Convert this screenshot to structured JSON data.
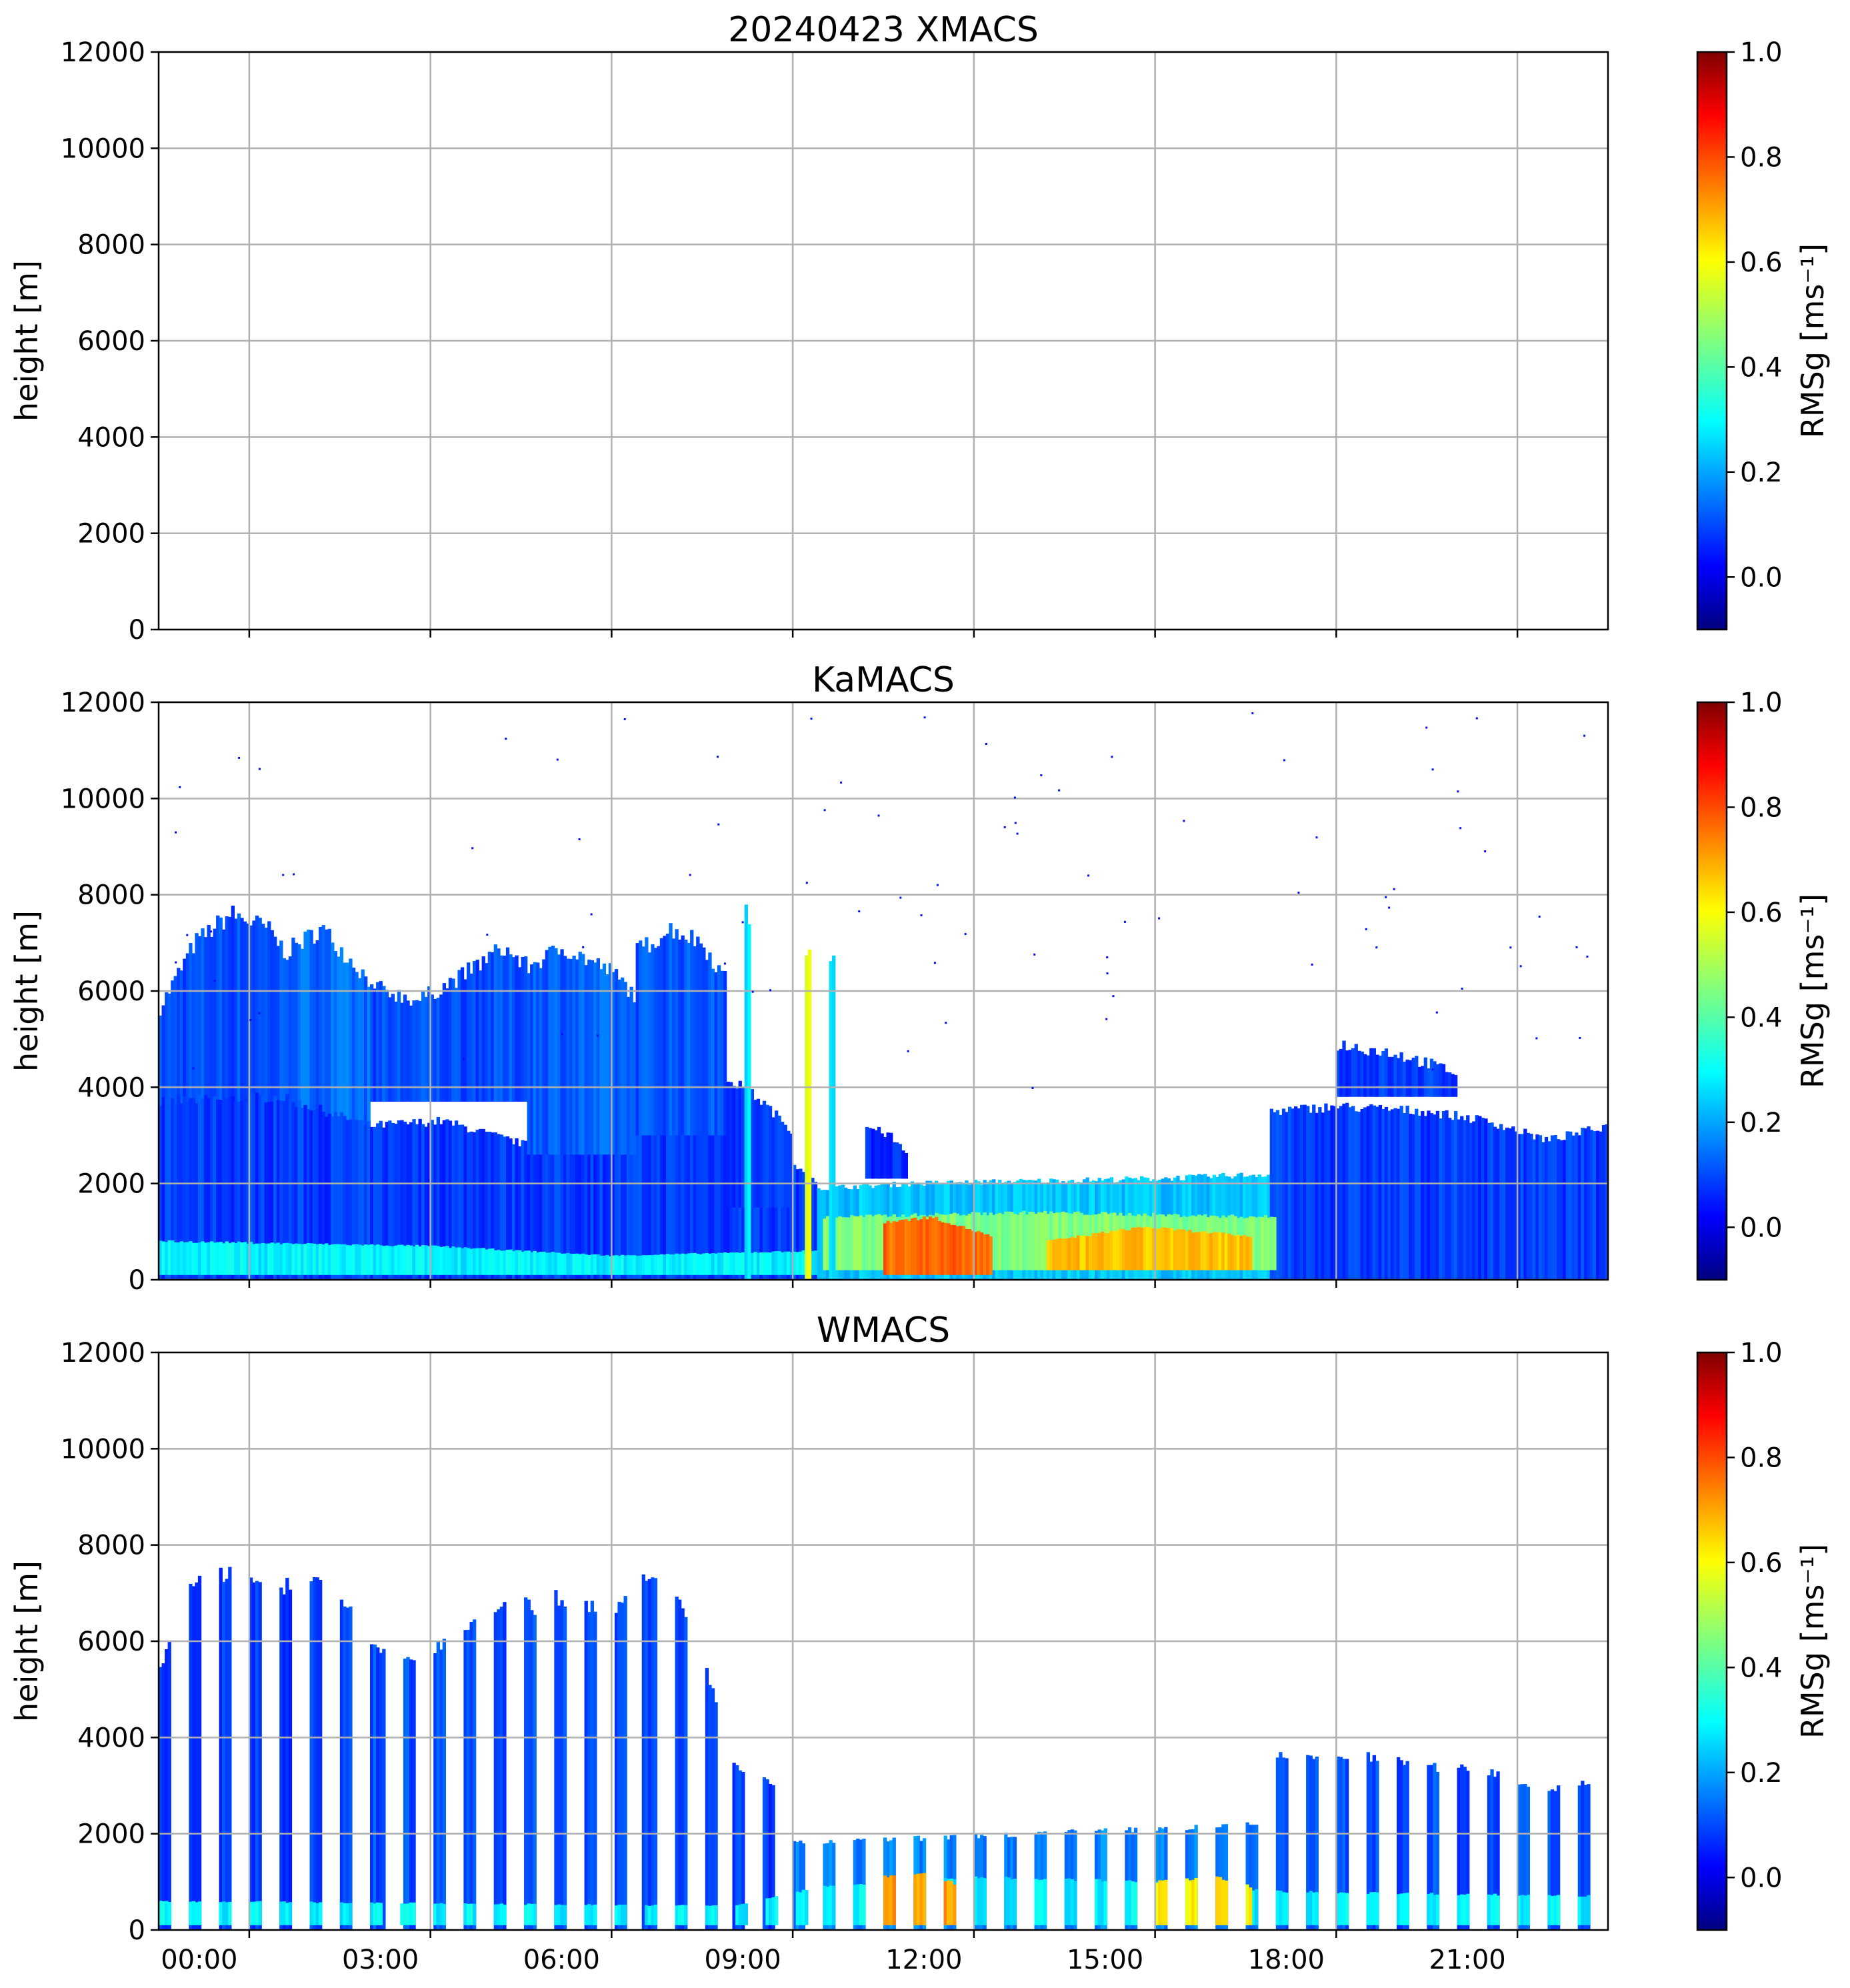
{
  "chart_data": [
    {
      "type": "heatmap",
      "title": "20240423 XMACS",
      "ylabel": "height [m]",
      "ylim": [
        0,
        12000
      ],
      "yticks": [
        "0",
        "2000",
        "4000",
        "6000",
        "8000",
        "10000",
        "12000"
      ],
      "x_range_hours": [
        -1.5,
        22.5
      ],
      "xticks": [
        "00:00",
        "03:00",
        "06:00",
        "09:00",
        "12:00",
        "15:00",
        "18:00",
        "21:00"
      ],
      "show_xtick_labels": false,
      "colorbar": {
        "label": "RMSg [ms⁻¹]",
        "min": -0.1,
        "max": 1.0,
        "ticks": [
          "0.0",
          "0.2",
          "0.4",
          "0.6",
          "0.8",
          "1.0"
        ],
        "colormap": "jet"
      },
      "mode": "empty",
      "regions": []
    },
    {
      "type": "heatmap",
      "title": "KaMACS",
      "ylabel": "height [m]",
      "ylim": [
        0,
        12000
      ],
      "yticks": [
        "0",
        "2000",
        "4000",
        "6000",
        "8000",
        "10000",
        "12000"
      ],
      "x_range_hours": [
        -1.5,
        22.5
      ],
      "xticks": [
        "00:00",
        "03:00",
        "06:00",
        "09:00",
        "12:00",
        "15:00",
        "18:00",
        "21:00"
      ],
      "show_xtick_labels": false,
      "colorbar": {
        "label": "RMSg [ms⁻¹]",
        "min": -0.1,
        "max": 1.0,
        "ticks": [
          "0.0",
          "0.2",
          "0.4",
          "0.6",
          "0.8",
          "1.0"
        ],
        "colormap": "jet"
      },
      "mode": "continuous",
      "regions": [
        {
          "t0": -1.5,
          "t1": 0.6,
          "profile": [
            [
              -1.5,
              5600
            ],
            [
              -0.9,
              7000
            ],
            [
              -0.3,
              7600
            ],
            [
              0.3,
              7300
            ],
            [
              0.6,
              6800
            ]
          ],
          "base": 3500,
          "value": 0.12
        },
        {
          "t0": 0.6,
          "t1": 2.0,
          "profile": [
            [
              0.6,
              6800
            ],
            [
              1.2,
              7300
            ],
            [
              2.0,
              6200
            ]
          ],
          "base": 3000,
          "value": 0.15
        },
        {
          "t0": -1.5,
          "t1": 9.4,
          "profile": [
            [
              -1.5,
              3700
            ],
            [
              0.5,
              3800
            ],
            [
              2.0,
              3200
            ],
            [
              3.2,
              3300
            ],
            [
              4.6,
              2800
            ],
            [
              6.0,
              3100
            ],
            [
              7.5,
              3200
            ],
            [
              8.5,
              2900
            ],
            [
              9.4,
              2000
            ]
          ],
          "base": 0,
          "value": 0.1
        },
        {
          "t0": 2.0,
          "t1": 4.6,
          "profile": [
            [
              2.0,
              6100
            ],
            [
              2.8,
              5800
            ],
            [
              3.5,
              6300
            ],
            [
              4.2,
              6900
            ],
            [
              4.6,
              6500
            ]
          ],
          "base": 3700,
          "value": 0.12
        },
        {
          "t0": 4.6,
          "t1": 6.4,
          "profile": [
            [
              4.6,
              6500
            ],
            [
              5.2,
              6900
            ],
            [
              6.0,
              6400
            ],
            [
              6.4,
              5900
            ]
          ],
          "base": 2600,
          "value": 0.14
        },
        {
          "t0": 6.4,
          "t1": 7.9,
          "profile": [
            [
              6.4,
              6800
            ],
            [
              7.0,
              7300
            ],
            [
              7.5,
              7000
            ],
            [
              7.9,
              6200
            ]
          ],
          "base": 3000,
          "value": 0.13
        },
        {
          "t0": 7.9,
          "t1": 9.0,
          "profile": [
            [
              7.9,
              4200
            ],
            [
              8.4,
              3800
            ],
            [
              9.0,
              3100
            ]
          ],
          "base": 1500,
          "value": 0.1
        },
        {
          "t0": 9.4,
          "t1": 17.0,
          "profile": [
            [
              9.4,
              1900
            ],
            [
              11.0,
              2000
            ],
            [
              13.0,
              2050
            ],
            [
              15.0,
              2100
            ],
            [
              17.0,
              2200
            ]
          ],
          "base": 0,
          "value": 0.25
        },
        {
          "t0": 10.2,
          "t1": 10.9,
          "profile": [
            [
              10.2,
              3200
            ],
            [
              10.6,
              3000
            ],
            [
              10.9,
              2600
            ]
          ],
          "base": 2100,
          "value": 0.08
        },
        {
          "t0": 16.9,
          "t1": 22.5,
          "profile": [
            [
              16.9,
              3500
            ],
            [
              18.0,
              3600
            ],
            [
              19.5,
              3500
            ],
            [
              20.5,
              3300
            ],
            [
              21.5,
              2900
            ],
            [
              22.5,
              3200
            ]
          ],
          "base": 0,
          "value": 0.1
        },
        {
          "t0": 18.0,
          "t1": 20.0,
          "profile": [
            [
              18.0,
              4900
            ],
            [
              19.0,
              4700
            ],
            [
              20.0,
              4300
            ]
          ],
          "base": 3800,
          "value": 0.1
        },
        {
          "t0": -1.5,
          "t1": 9.4,
          "profile": [
            [
              -1.5,
              800
            ],
            [
              3.0,
              700
            ],
            [
              6.0,
              500
            ],
            [
              9.4,
              600
            ]
          ],
          "base": 100,
          "value": 0.3
        },
        {
          "t0": 9.5,
          "t1": 17.0,
          "profile": [
            [
              9.5,
              1300
            ],
            [
              13.0,
              1400
            ],
            [
              17.0,
              1300
            ]
          ],
          "base": 200,
          "value": 0.45
        },
        {
          "t0": 10.5,
          "t1": 12.3,
          "profile": [
            [
              10.5,
              1200
            ],
            [
              11.3,
              1300
            ],
            [
              12.3,
              900
            ]
          ],
          "base": 100,
          "value": 0.75
        },
        {
          "t0": 13.2,
          "t1": 16.6,
          "profile": [
            [
              13.2,
              800
            ],
            [
              14.8,
              1100
            ],
            [
              16.6,
              900
            ]
          ],
          "base": 200,
          "value": 0.65
        },
        {
          "t0": 8.2,
          "t1": 8.3,
          "profile": [
            [
              8.2,
              7600
            ],
            [
              8.3,
              7600
            ]
          ],
          "base": 0,
          "value": 0.3
        },
        {
          "t0": 9.2,
          "t1": 9.3,
          "profile": [
            [
              9.2,
              6800
            ],
            [
              9.3,
              6800
            ]
          ],
          "base": 0,
          "value": 0.55
        },
        {
          "t0": 9.6,
          "t1": 9.7,
          "profile": [
            [
              9.6,
              6700
            ],
            [
              9.7,
              6700
            ]
          ],
          "base": 0,
          "value": 0.3
        }
      ]
    },
    {
      "type": "heatmap",
      "title": "WMACS",
      "ylabel": "height [m]",
      "ylim": [
        0,
        12000
      ],
      "yticks": [
        "0",
        "2000",
        "4000",
        "6000",
        "8000",
        "10000",
        "12000"
      ],
      "x_range_hours": [
        -1.5,
        22.5
      ],
      "xticks": [
        "00:00",
        "03:00",
        "06:00",
        "09:00",
        "12:00",
        "15:00",
        "18:00",
        "21:00"
      ],
      "show_xtick_labels": true,
      "colorbar": {
        "label": "RMSg [ms⁻¹]",
        "min": -0.1,
        "max": 1.0,
        "ticks": [
          "0.0",
          "0.2",
          "0.4",
          "0.6",
          "0.8",
          "1.0"
        ],
        "colormap": "jet"
      },
      "mode": "stripes",
      "stripe_period_hours": 0.5,
      "stripe_width_hours": 0.2,
      "stripes_start": -1.5,
      "regions": [
        {
          "t0": -1.5,
          "t1": 0.6,
          "profile": [
            [
              -1.5,
              5500
            ],
            [
              -0.9,
              7200
            ],
            [
              -0.3,
              7500
            ],
            [
              0.6,
              7000
            ]
          ],
          "base": 0,
          "value": 0.1
        },
        {
          "t0": 0.6,
          "t1": 2.0,
          "profile": [
            [
              0.6,
              7300
            ],
            [
              1.2,
              7200
            ],
            [
              2.0,
              6300
            ]
          ],
          "base": 0,
          "value": 0.1
        },
        {
          "t0": 2.0,
          "t1": 4.6,
          "profile": [
            [
              2.0,
              6000
            ],
            [
              2.8,
              5600
            ],
            [
              3.5,
              6300
            ],
            [
              4.2,
              6900
            ],
            [
              4.6,
              6800
            ]
          ],
          "base": 0,
          "value": 0.12
        },
        {
          "t0": 4.6,
          "t1": 6.4,
          "profile": [
            [
              4.6,
              6700
            ],
            [
              5.2,
              6900
            ],
            [
              6.0,
              6700
            ],
            [
              6.4,
              6900
            ]
          ],
          "base": 0,
          "value": 0.12
        },
        {
          "t0": 6.4,
          "t1": 7.9,
          "profile": [
            [
              6.4,
              7200
            ],
            [
              7.0,
              7200
            ],
            [
              7.9,
              4300
            ]
          ],
          "base": 0,
          "value": 0.12
        },
        {
          "t0": 7.9,
          "t1": 9.0,
          "profile": [
            [
              7.9,
              3500
            ],
            [
              8.5,
              3100
            ],
            [
              9.0,
              2900
            ]
          ],
          "base": 0,
          "value": 0.1
        },
        {
          "t0": 9.0,
          "t1": 17.0,
          "profile": [
            [
              9.0,
              1800
            ],
            [
              11.0,
              1900
            ],
            [
              13.0,
              2000
            ],
            [
              15.0,
              2100
            ],
            [
              17.0,
              2200
            ]
          ],
          "base": 0,
          "value": 0.18
        },
        {
          "t0": 17.0,
          "t1": 22.5,
          "profile": [
            [
              17.0,
              3600
            ],
            [
              18.5,
              3600
            ],
            [
              19.5,
              3400
            ],
            [
              20.5,
              3300
            ],
            [
              21.5,
              2900
            ],
            [
              22.5,
              3200
            ]
          ],
          "base": 0,
          "value": 0.12
        },
        {
          "t0": -1.5,
          "t1": 22.5,
          "profile": [
            [
              -1.5,
              600
            ],
            [
              8.0,
              500
            ],
            [
              9.5,
              900
            ],
            [
              12.0,
              1100
            ],
            [
              15.0,
              1000
            ],
            [
              17.0,
              800
            ],
            [
              22.5,
              700
            ]
          ],
          "base": 100,
          "value": 0.3
        },
        {
          "t0": 10.4,
          "t1": 11.8,
          "profile": [
            [
              10.4,
              1100
            ],
            [
              11.2,
              1200
            ],
            [
              11.8,
              900
            ]
          ],
          "base": 100,
          "value": 0.7
        },
        {
          "t0": 15.0,
          "t1": 16.6,
          "profile": [
            [
              15.0,
              1000
            ],
            [
              16.0,
              1100
            ],
            [
              16.6,
              900
            ]
          ],
          "base": 100,
          "value": 0.6
        }
      ]
    }
  ]
}
